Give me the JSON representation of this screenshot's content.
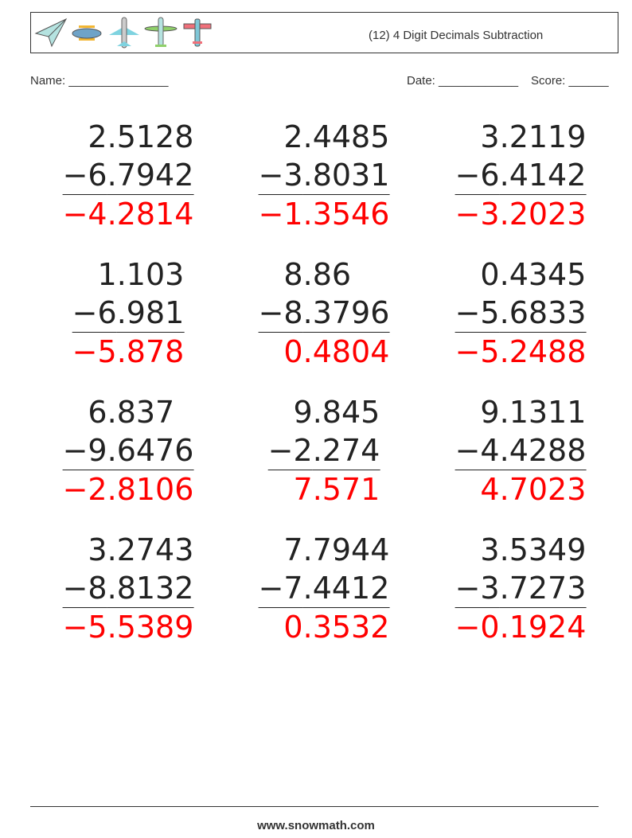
{
  "header": {
    "title": "(12) 4 Digit Decimals Subtraction",
    "icons": [
      "paper-plane-icon",
      "biplane-icon",
      "jet-plane-icon",
      "propeller-plane-icon",
      "red-wing-plane-icon"
    ]
  },
  "meta": {
    "name_label": "Name: _______________",
    "date_label": "Date: ____________",
    "score_label": "Score: ______"
  },
  "problems": [
    {
      "a": [
        "2",
        ".5128"
      ],
      "b": [
        "−6",
        ".7942"
      ],
      "ans": [
        "−4",
        ".2814"
      ]
    },
    {
      "a": [
        "2",
        ".4485"
      ],
      "b": [
        "−3",
        ".8031"
      ],
      "ans": [
        "−1",
        ".3546"
      ]
    },
    {
      "a": [
        "3",
        ".2119"
      ],
      "b": [
        "−6",
        ".4142"
      ],
      "ans": [
        "−3",
        ".2023"
      ]
    },
    {
      "a": [
        "1",
        ".103"
      ],
      "b": [
        "−6",
        ".981"
      ],
      "ans": [
        "−5",
        ".878"
      ]
    },
    {
      "a": [
        "8",
        ".86"
      ],
      "b": [
        "−8",
        ".3796"
      ],
      "ans": [
        "0",
        ".4804"
      ]
    },
    {
      "a": [
        "0",
        ".4345"
      ],
      "b": [
        "−5",
        ".6833"
      ],
      "ans": [
        "−5",
        ".2488"
      ]
    },
    {
      "a": [
        "6",
        ".837"
      ],
      "b": [
        "−9",
        ".6476"
      ],
      "ans": [
        "−2",
        ".8106"
      ]
    },
    {
      "a": [
        "9",
        ".845"
      ],
      "b": [
        "−2",
        ".274"
      ],
      "ans": [
        "7",
        ".571"
      ]
    },
    {
      "a": [
        "9",
        ".1311"
      ],
      "b": [
        "−4",
        ".4288"
      ],
      "ans": [
        "4",
        ".7023"
      ]
    },
    {
      "a": [
        "3",
        ".2743"
      ],
      "b": [
        "−8",
        ".8132"
      ],
      "ans": [
        "−5",
        ".5389"
      ]
    },
    {
      "a": [
        "7",
        ".7944"
      ],
      "b": [
        "−7",
        ".4412"
      ],
      "ans": [
        "0",
        ".3532"
      ]
    },
    {
      "a": [
        "3",
        ".5349"
      ],
      "b": [
        "−3",
        ".7273"
      ],
      "ans": [
        "−0",
        ".1924"
      ]
    }
  ],
  "colors": {
    "answer": "#ff0000",
    "text": "#222222"
  },
  "footer": {
    "url": "www.snowmath.com"
  }
}
